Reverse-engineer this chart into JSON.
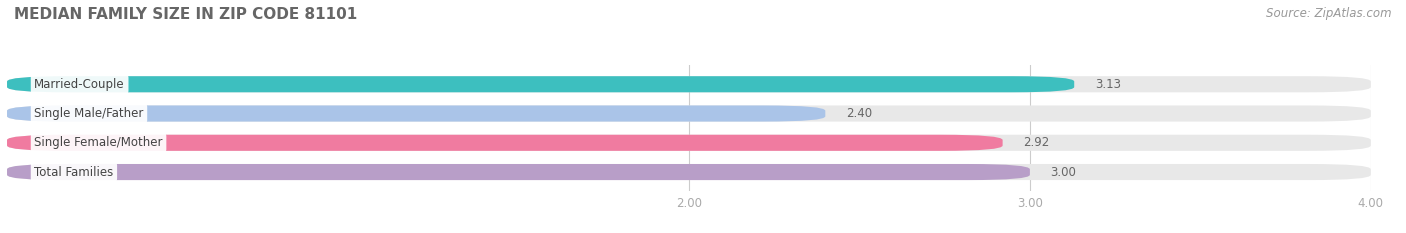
{
  "title": "MEDIAN FAMILY SIZE IN ZIP CODE 81101",
  "source": "Source: ZipAtlas.com",
  "categories": [
    "Married-Couple",
    "Single Male/Father",
    "Single Female/Mother",
    "Total Families"
  ],
  "values": [
    3.13,
    2.4,
    2.92,
    3.0
  ],
  "colors": [
    "#3dbfbf",
    "#aac4e8",
    "#f07ba0",
    "#b89ec8"
  ],
  "bar_bg_color": "#e8e8e8",
  "xmin": 0.0,
  "xmax": 4.0,
  "xlim_display": [
    1.7,
    4.3
  ],
  "xticks": [
    2.0,
    3.0,
    4.0
  ],
  "bar_height": 0.55,
  "bar_gap": 0.45,
  "label_fontsize": 8.5,
  "value_fontsize": 8.5,
  "title_fontsize": 11,
  "title_color": "#666666",
  "label_color": "#444444",
  "tick_color": "#aaaaaa",
  "value_color": "#666666",
  "source_color": "#999999",
  "source_fontsize": 8.5
}
